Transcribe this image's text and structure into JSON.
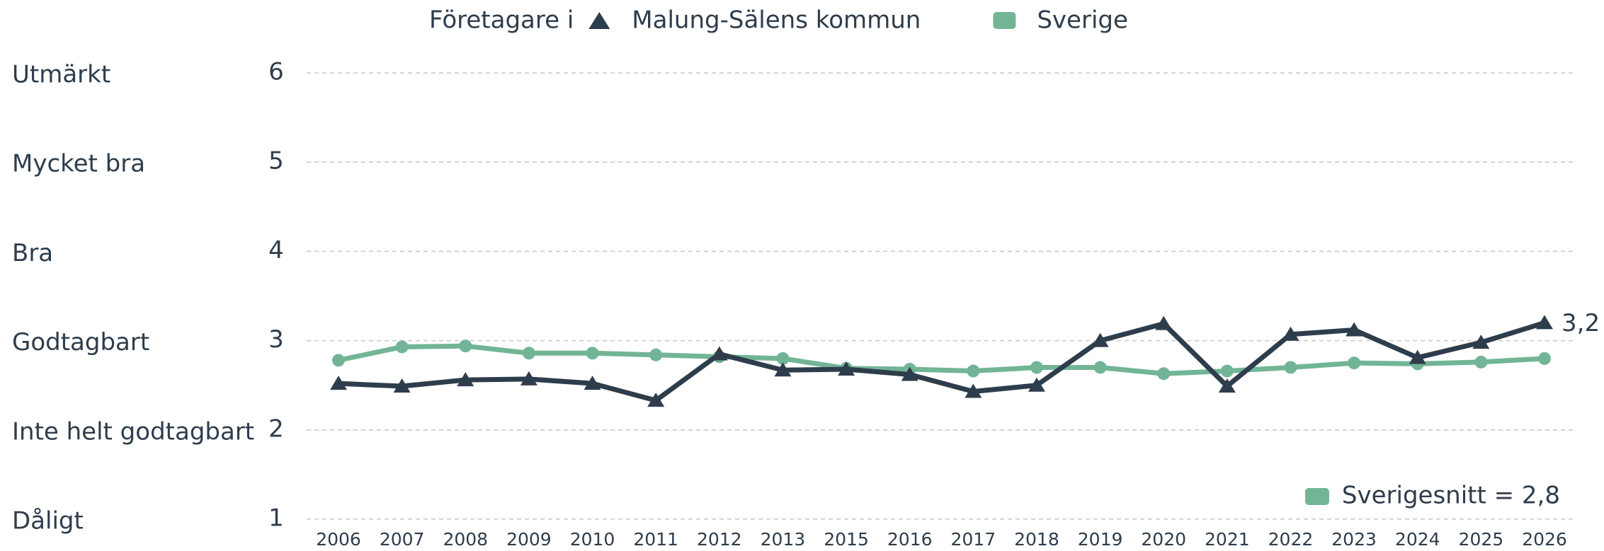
{
  "chart_data": {
    "type": "line",
    "legend_title": "Företagare i",
    "categories": [
      "2006",
      "2007",
      "2008",
      "2009",
      "2010",
      "2011",
      "2012",
      "2013",
      "2015",
      "2016",
      "2017",
      "2018",
      "2019",
      "2020",
      "2021",
      "2022",
      "2023",
      "2024",
      "2025",
      "2026"
    ],
    "series": [
      {
        "name": "Malung-Sälens kommun",
        "color": "#2e3d4c",
        "marker": "triangle",
        "values": [
          2.52,
          2.49,
          2.56,
          2.57,
          2.52,
          2.33,
          2.85,
          2.67,
          2.68,
          2.62,
          2.43,
          2.5,
          3.0,
          3.19,
          2.49,
          3.07,
          3.12,
          2.81,
          2.98,
          3.2
        ],
        "value_labels": [
          null,
          null,
          null,
          null,
          null,
          null,
          null,
          null,
          null,
          null,
          null,
          null,
          null,
          null,
          null,
          null,
          null,
          null,
          null,
          "3,2"
        ]
      },
      {
        "name": "Sverige",
        "color": "#72b596",
        "marker": "circle",
        "values": [
          2.78,
          2.93,
          2.94,
          2.86,
          2.86,
          2.84,
          2.82,
          2.8,
          2.69,
          2.68,
          2.66,
          2.7,
          2.7,
          2.63,
          2.66,
          2.7,
          2.75,
          2.74,
          2.76,
          2.8
        ]
      }
    ],
    "ylim": [
      1,
      6
    ],
    "yticks": [
      1,
      2,
      3,
      4,
      5,
      6
    ],
    "ytick_categories": [
      "Dåligt",
      "Inte helt godtagbart",
      "Godtagbart",
      "Bra",
      "Mycket bra",
      "Utmärkt"
    ],
    "annotation": "Sverigesnitt = 2,8",
    "grid": true
  }
}
